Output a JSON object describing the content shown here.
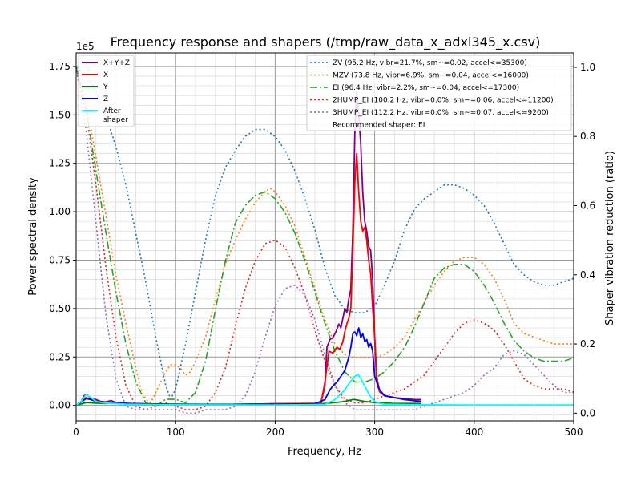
{
  "chart_data": {
    "type": "line",
    "title": "Frequency response and shapers (/tmp/raw_data_x_adxl345_x.csv)",
    "xlabel": "Frequency, Hz",
    "ylabel": "Power spectral density",
    "y2label": "Shaper vibration reduction (ratio)",
    "y_offset_text": "1e5",
    "xlim": [
      0,
      500
    ],
    "ylim": [
      -0.08,
      1.82
    ],
    "y2lim": [
      -0.0224,
      1.0416
    ],
    "x_ticks": [
      0,
      100,
      200,
      300,
      400,
      500
    ],
    "x_tick_labels": [
      "0",
      "100",
      "200",
      "300",
      "400",
      "500"
    ],
    "y_ticks": [
      0,
      0.25,
      0.5,
      0.75,
      1.0,
      1.25,
      1.5,
      1.75
    ],
    "y_tick_labels": [
      "0.00",
      "0.25",
      "0.50",
      "0.75",
      "1.00",
      "1.25",
      "1.50",
      "1.75"
    ],
    "y2_ticks": [
      0,
      0.2,
      0.4,
      0.6,
      0.8,
      1.0
    ],
    "y2_tick_labels": [
      "0.0",
      "0.2",
      "0.4",
      "0.6",
      "0.8",
      "1.0"
    ],
    "grid": "major and minor",
    "legend_left_placement": "top-left",
    "legend_right_placement": "top-right",
    "psd_series": [
      {
        "name": "X+Y+Z",
        "color": "#800080",
        "style": "solid",
        "x": [
          0,
          5,
          8,
          10,
          12,
          15,
          20,
          25,
          30,
          35,
          40,
          50,
          60,
          80,
          100,
          150,
          200,
          230,
          240,
          246,
          250,
          252,
          255,
          258,
          261,
          264,
          266,
          268,
          270,
          272,
          274,
          276,
          278,
          280,
          282,
          284,
          286,
          288,
          290,
          292,
          294,
          296,
          298,
          300,
          302,
          305,
          310,
          320,
          330,
          340,
          347
        ],
        "values": [
          0.0,
          0.02,
          0.05,
          0.055,
          0.05,
          0.035,
          0.03,
          0.02,
          0.018,
          0.025,
          0.015,
          0.01,
          0.008,
          0.006,
          0.005,
          0.005,
          0.008,
          0.01,
          0.01,
          0.015,
          0.1,
          0.3,
          0.34,
          0.35,
          0.38,
          0.42,
          0.4,
          0.45,
          0.5,
          0.48,
          0.55,
          0.6,
          0.9,
          1.4,
          1.62,
          1.5,
          1.35,
          1.1,
          0.95,
          0.9,
          0.82,
          0.8,
          0.65,
          0.35,
          0.12,
          0.07,
          0.05,
          0.04,
          0.035,
          0.03,
          0.03
        ]
      },
      {
        "name": "X",
        "color": "#ff0000",
        "style": "solid",
        "x": [
          0,
          10,
          20,
          50,
          100,
          150,
          200,
          240,
          246,
          250,
          254,
          258,
          262,
          265,
          268,
          270,
          272,
          274,
          276,
          278,
          280,
          282,
          284,
          286,
          288,
          290,
          292,
          294,
          296,
          298,
          300,
          302,
          305,
          310,
          320,
          330,
          340,
          347
        ],
        "values": [
          0.0,
          0.04,
          0.02,
          0.01,
          0.005,
          0.005,
          0.008,
          0.01,
          0.01,
          0.12,
          0.28,
          0.27,
          0.3,
          0.29,
          0.33,
          0.38,
          0.42,
          0.45,
          0.5,
          0.8,
          1.15,
          1.3,
          1.1,
          0.95,
          0.9,
          0.92,
          0.85,
          0.75,
          0.68,
          0.5,
          0.35,
          0.15,
          0.07,
          0.05,
          0.04,
          0.03,
          0.025,
          0.02
        ]
      },
      {
        "name": "Y",
        "color": "#008000",
        "style": "solid",
        "x": [
          0,
          10,
          20,
          30,
          40,
          60,
          100,
          150,
          200,
          230,
          250,
          260,
          270,
          278,
          280,
          285,
          290,
          300,
          320,
          347
        ],
        "values": [
          0.0,
          0.015,
          0.012,
          0.01,
          0.015,
          0.008,
          0.006,
          0.005,
          0.006,
          0.005,
          0.01,
          0.015,
          0.02,
          0.03,
          0.03,
          0.025,
          0.02,
          0.015,
          0.01,
          0.01
        ]
      },
      {
        "name": "Z",
        "color": "#0000ff",
        "style": "solid",
        "x": [
          0,
          10,
          15,
          20,
          30,
          50,
          100,
          150,
          200,
          240,
          250,
          255,
          258,
          262,
          266,
          270,
          274,
          276,
          278,
          280,
          282,
          284,
          286,
          288,
          290,
          292,
          294,
          296,
          298,
          300,
          305,
          310,
          320,
          330,
          347
        ],
        "values": [
          0.0,
          0.035,
          0.03,
          0.02,
          0.015,
          0.01,
          0.005,
          0.005,
          0.005,
          0.008,
          0.03,
          0.08,
          0.1,
          0.12,
          0.15,
          0.18,
          0.25,
          0.3,
          0.37,
          0.38,
          0.36,
          0.4,
          0.35,
          0.37,
          0.33,
          0.34,
          0.3,
          0.32,
          0.28,
          0.15,
          0.08,
          0.05,
          0.04,
          0.03,
          0.02
        ]
      },
      {
        "name": "After\nshaper",
        "color": "#00ffff",
        "style": "solid",
        "x": [
          0,
          5,
          10,
          15,
          20,
          30,
          50,
          100,
          200,
          250,
          260,
          270,
          275,
          280,
          283,
          286,
          290,
          295,
          300,
          305,
          310,
          330,
          350,
          400,
          500
        ],
        "values": [
          0.0,
          0.02,
          0.055,
          0.04,
          0.02,
          0.012,
          0.006,
          0.003,
          0.002,
          0.005,
          0.03,
          0.08,
          0.12,
          0.15,
          0.16,
          0.14,
          0.1,
          0.05,
          0.02,
          0.01,
          0.006,
          0.004,
          0.003,
          0.002,
          0.002
        ]
      }
    ],
    "shaper_series": [
      {
        "name": "ZV (95.2 Hz, vibr=21.7%, sm~=0.02, accel<=35300)",
        "color": "#1f77b4",
        "style": "dotted",
        "x": [
          0,
          10,
          20,
          30,
          40,
          50,
          60,
          70,
          80,
          90,
          95,
          100,
          110,
          120,
          130,
          140,
          150,
          160,
          170,
          180,
          190,
          200,
          210,
          220,
          230,
          240,
          250,
          260,
          270,
          280,
          290,
          300,
          310,
          320,
          330,
          340,
          350,
          360,
          370,
          380,
          390,
          400,
          410,
          420,
          430,
          440,
          450,
          460,
          470,
          480,
          490,
          500
        ],
        "values": [
          1.0,
          0.98,
          0.93,
          0.86,
          0.77,
          0.66,
          0.52,
          0.38,
          0.22,
          0.08,
          0.04,
          0.07,
          0.2,
          0.35,
          0.5,
          0.63,
          0.71,
          0.76,
          0.8,
          0.82,
          0.82,
          0.8,
          0.76,
          0.7,
          0.62,
          0.53,
          0.42,
          0.34,
          0.3,
          0.29,
          0.29,
          0.31,
          0.37,
          0.44,
          0.53,
          0.59,
          0.62,
          0.64,
          0.66,
          0.66,
          0.65,
          0.63,
          0.6,
          0.55,
          0.49,
          0.43,
          0.4,
          0.38,
          0.37,
          0.37,
          0.38,
          0.39
        ]
      },
      {
        "name": "MZV (73.8 Hz, vibr=6.9%, sm~=0.04, accel<=16000)",
        "color": "#ff7f0e",
        "style": "dotted",
        "x": [
          0,
          10,
          20,
          30,
          40,
          50,
          60,
          65,
          70,
          75,
          80,
          85,
          90,
          95,
          100,
          105,
          110,
          115,
          120,
          130,
          140,
          150,
          160,
          170,
          180,
          190,
          195,
          200,
          210,
          220,
          230,
          240,
          250,
          260,
          270,
          280,
          290,
          300,
          310,
          320,
          330,
          340,
          350,
          360,
          370,
          380,
          390,
          400,
          410,
          420,
          430,
          440,
          450,
          460,
          470,
          480,
          490,
          500
        ],
        "values": [
          1.0,
          0.9,
          0.74,
          0.57,
          0.4,
          0.26,
          0.13,
          0.07,
          0.04,
          0.03,
          0.06,
          0.09,
          0.12,
          0.14,
          0.14,
          0.13,
          0.11,
          0.12,
          0.15,
          0.22,
          0.33,
          0.43,
          0.5,
          0.56,
          0.61,
          0.64,
          0.65,
          0.64,
          0.6,
          0.54,
          0.45,
          0.36,
          0.27,
          0.2,
          0.17,
          0.16,
          0.16,
          0.16,
          0.17,
          0.19,
          0.22,
          0.27,
          0.32,
          0.37,
          0.41,
          0.44,
          0.45,
          0.45,
          0.43,
          0.39,
          0.33,
          0.26,
          0.23,
          0.22,
          0.21,
          0.2,
          0.2,
          0.2
        ]
      },
      {
        "name": "EI (96.4 Hz, vibr=2.2%, sm~=0.04, accel<=17300)",
        "color": "#2ca02c",
        "style": "dashdot",
        "x": [
          0,
          10,
          20,
          30,
          40,
          50,
          60,
          70,
          80,
          90,
          100,
          110,
          120,
          130,
          140,
          150,
          160,
          170,
          180,
          190,
          200,
          210,
          220,
          230,
          240,
          250,
          260,
          270,
          280,
          290,
          300,
          310,
          320,
          330,
          340,
          350,
          360,
          370,
          380,
          390,
          400,
          410,
          420,
          430,
          440,
          450,
          460,
          470,
          480,
          490,
          500
        ],
        "values": [
          1.0,
          0.88,
          0.7,
          0.52,
          0.35,
          0.2,
          0.09,
          0.03,
          0.02,
          0.04,
          0.04,
          0.03,
          0.06,
          0.15,
          0.3,
          0.44,
          0.55,
          0.6,
          0.63,
          0.64,
          0.62,
          0.58,
          0.52,
          0.44,
          0.35,
          0.26,
          0.18,
          0.12,
          0.09,
          0.09,
          0.1,
          0.12,
          0.15,
          0.19,
          0.25,
          0.32,
          0.39,
          0.42,
          0.43,
          0.43,
          0.41,
          0.37,
          0.32,
          0.26,
          0.21,
          0.18,
          0.16,
          0.15,
          0.15,
          0.15,
          0.16
        ]
      },
      {
        "name": "2HUMP_EI (100.2 Hz, vibr=0.0%, sm~=0.06, accel<=11200)",
        "color": "#d62728",
        "style": "dotted",
        "x": [
          0,
          10,
          20,
          30,
          40,
          50,
          60,
          70,
          80,
          90,
          100,
          110,
          120,
          130,
          140,
          150,
          160,
          170,
          180,
          190,
          200,
          210,
          220,
          230,
          240,
          250,
          260,
          270,
          280,
          290,
          300,
          310,
          320,
          330,
          340,
          350,
          360,
          370,
          380,
          390,
          400,
          410,
          420,
          430,
          440,
          450,
          460,
          470,
          480,
          490,
          500
        ],
        "values": [
          1.0,
          0.87,
          0.66,
          0.42,
          0.22,
          0.08,
          0.02,
          0.01,
          0.02,
          0.03,
          0.02,
          0.01,
          0.01,
          0.02,
          0.06,
          0.13,
          0.25,
          0.36,
          0.44,
          0.49,
          0.5,
          0.48,
          0.42,
          0.34,
          0.24,
          0.15,
          0.08,
          0.04,
          0.03,
          0.03,
          0.04,
          0.05,
          0.06,
          0.07,
          0.09,
          0.11,
          0.15,
          0.19,
          0.23,
          0.26,
          0.27,
          0.26,
          0.24,
          0.2,
          0.15,
          0.1,
          0.08,
          0.07,
          0.07,
          0.07,
          0.06
        ]
      },
      {
        "name": "3HUMP_EI (112.2 Hz, vibr=0.0%, sm~=0.07, accel<=9200)",
        "color": "#9467bd",
        "style": "dotted",
        "x": [
          0,
          10,
          20,
          30,
          40,
          50,
          60,
          70,
          80,
          90,
          100,
          110,
          120,
          130,
          140,
          150,
          160,
          170,
          180,
          190,
          200,
          210,
          220,
          230,
          240,
          250,
          260,
          270,
          280,
          290,
          300,
          310,
          320,
          330,
          340,
          350,
          360,
          370,
          380,
          390,
          400,
          410,
          420,
          430,
          440,
          450,
          460,
          470,
          480,
          490,
          500
        ],
        "values": [
          1.0,
          0.82,
          0.55,
          0.28,
          0.1,
          0.02,
          0.01,
          0.01,
          0.01,
          0.01,
          0.01,
          0.0,
          0.0,
          0.01,
          0.01,
          0.01,
          0.02,
          0.05,
          0.12,
          0.22,
          0.31,
          0.36,
          0.37,
          0.34,
          0.27,
          0.17,
          0.08,
          0.03,
          0.01,
          0.01,
          0.01,
          0.01,
          0.01,
          0.01,
          0.01,
          0.02,
          0.03,
          0.04,
          0.05,
          0.06,
          0.08,
          0.11,
          0.13,
          0.17,
          0.18,
          0.17,
          0.14,
          0.11,
          0.08,
          0.06,
          0.06
        ]
      }
    ],
    "annotation": "Recommended shaper: EI"
  }
}
